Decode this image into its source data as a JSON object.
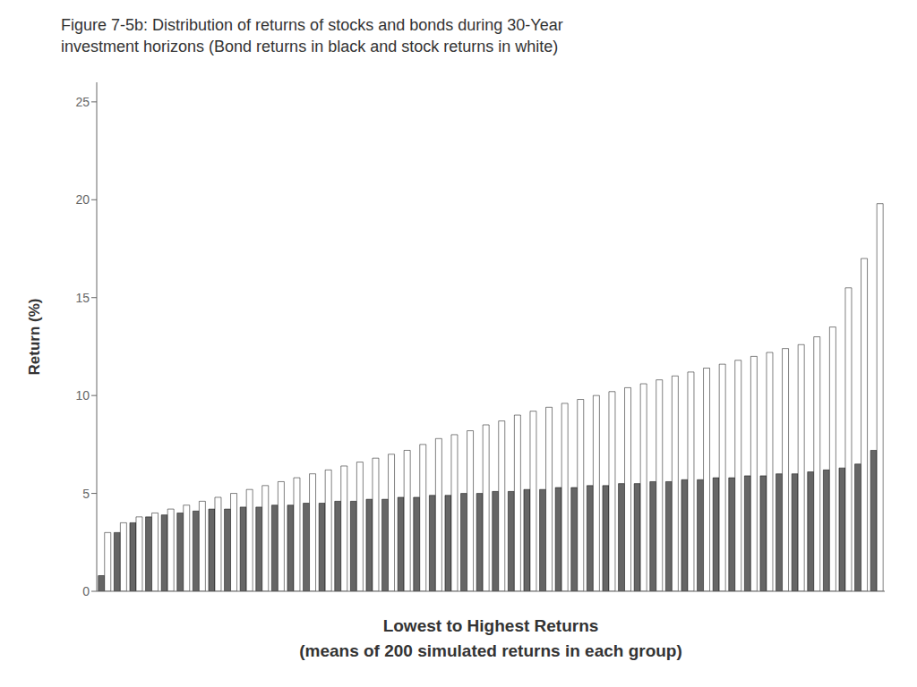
{
  "chart_data": {
    "type": "bar",
    "title": "Figure 7-5b: Distribution of returns of stocks and bonds during 30-Year\ninvestment horizons (Bond returns in black and stock returns in white)",
    "xlabel": "Lowest to Highest Returns\n(means of 200 simulated returns in each group)",
    "ylabel": "Return (%)",
    "series": [
      {
        "color": "#666666",
        "values": [
          0.8,
          3.0,
          3.5,
          3.8,
          3.9,
          4.0,
          4.1,
          4.2,
          4.2,
          4.3,
          4.3,
          4.4,
          4.4,
          4.5,
          4.5,
          4.6,
          4.6,
          4.7,
          4.7,
          4.8,
          4.8,
          4.9,
          4.9,
          5.0,
          5.0,
          5.1,
          5.1,
          5.2,
          5.2,
          5.3,
          5.3,
          5.4,
          5.4,
          5.5,
          5.5,
          5.6,
          5.6,
          5.7,
          5.7,
          5.8,
          5.8,
          5.9,
          5.9,
          6.0,
          6.0,
          6.1,
          6.2,
          6.3,
          6.5,
          7.2
        ]
      },
      {
        "color": "#ffffff",
        "values": [
          3.0,
          3.5,
          3.8,
          4.0,
          4.2,
          4.4,
          4.6,
          4.8,
          5.0,
          5.2,
          5.4,
          5.6,
          5.8,
          6.0,
          6.2,
          6.4,
          6.6,
          6.8,
          7.0,
          7.2,
          7.5,
          7.8,
          8.0,
          8.2,
          8.5,
          8.7,
          9.0,
          9.2,
          9.4,
          9.6,
          9.8,
          10.0,
          10.2,
          10.4,
          10.6,
          10.8,
          11.0,
          11.2,
          11.4,
          11.6,
          11.8,
          12.0,
          12.2,
          12.4,
          12.6,
          13.0,
          13.5,
          15.5,
          17.0,
          19.8
        ]
      }
    ],
    "ylim": [
      0,
      26
    ],
    "yticks": [
      0,
      5,
      10,
      15,
      20,
      25
    ],
    "grid": false,
    "tick_labels": "y"
  }
}
